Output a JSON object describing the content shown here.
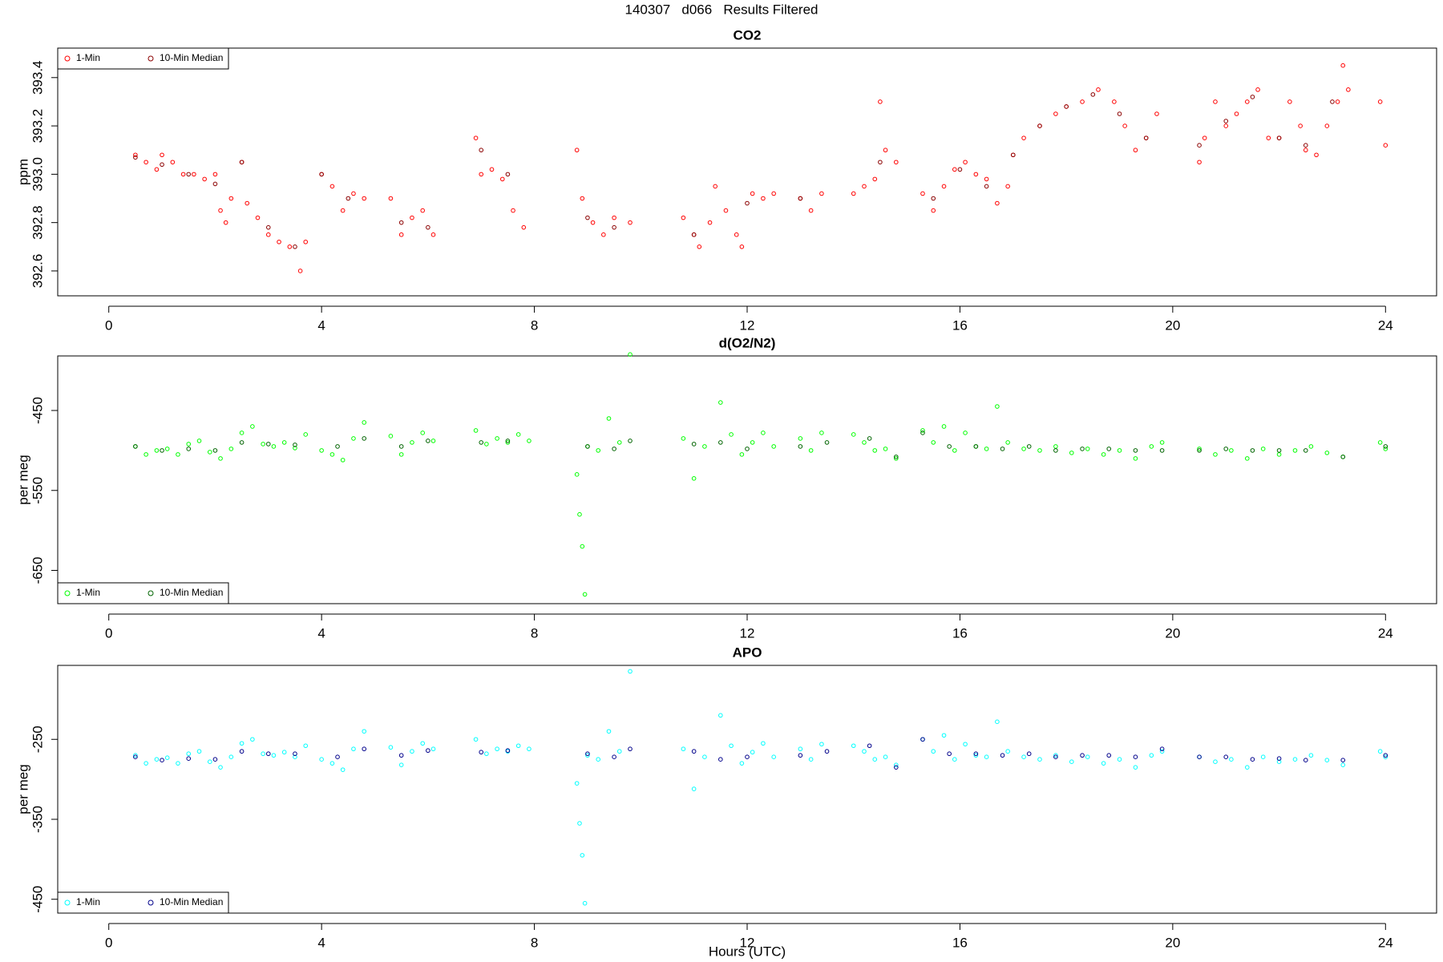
{
  "title": "140307   d066   Results Filtered",
  "chart_data": [
    {
      "type": "scatter",
      "title": "CO2",
      "ylabel": "ppm",
      "legend": "top-left",
      "xlim": [
        -0.96,
        24.96
      ],
      "xticks": [
        0,
        4,
        8,
        12,
        16,
        20,
        24
      ],
      "ylim": [
        392.497,
        393.522
      ],
      "yticks": [
        392.6,
        392.8,
        {
          "value": 393,
          "label": "393.0"
        },
        393.2,
        393.4
      ],
      "series": [
        {
          "name": "1-Min",
          "color": "#ff0000",
          "x": [
            0.5,
            0.7,
            0.9,
            1.0,
            1.2,
            1.4,
            1.6,
            1.8,
            2.0,
            2.1,
            2.2,
            2.3,
            2.5,
            2.6,
            2.8,
            3.0,
            3.2,
            3.4,
            3.6,
            3.7,
            4.0,
            4.2,
            4.4,
            4.6,
            4.8,
            5.3,
            5.5,
            5.7,
            5.9,
            6.1,
            6.9,
            7.0,
            7.2,
            7.4,
            7.6,
            7.8,
            8.8,
            8.9,
            9.1,
            9.3,
            9.5,
            9.8,
            10.8,
            11.0,
            11.1,
            11.3,
            11.4,
            11.6,
            11.8,
            11.9,
            12.1,
            12.3,
            12.5,
            13.0,
            13.2,
            13.4,
            14.0,
            14.2,
            14.4,
            14.5,
            14.6,
            14.8,
            15.3,
            15.5,
            15.7,
            15.9,
            16.1,
            16.3,
            16.5,
            16.7,
            16.9,
            17.0,
            17.2,
            17.5,
            17.8,
            18.0,
            18.3,
            18.6,
            18.9,
            19.1,
            19.3,
            19.5,
            19.7,
            20.5,
            20.6,
            20.8,
            21.0,
            21.2,
            21.4,
            21.6,
            21.8,
            22.0,
            22.2,
            22.4,
            22.5,
            22.7,
            22.9,
            23.1,
            23.2,
            23.3,
            23.9,
            24.0
          ],
          "values": [
            393.08,
            393.05,
            393.02,
            393.08,
            393.05,
            393.0,
            393.0,
            392.98,
            393.0,
            392.85,
            392.8,
            392.9,
            393.05,
            392.88,
            392.82,
            392.75,
            392.72,
            392.7,
            392.6,
            392.72,
            393.0,
            392.95,
            392.85,
            392.92,
            392.9,
            392.9,
            392.75,
            392.82,
            392.85,
            392.75,
            393.15,
            393.0,
            393.02,
            392.98,
            392.85,
            392.78,
            393.1,
            392.9,
            392.8,
            392.75,
            392.82,
            392.8,
            392.82,
            392.75,
            392.7,
            392.8,
            392.95,
            392.85,
            392.75,
            392.7,
            392.92,
            392.9,
            392.92,
            392.9,
            392.85,
            392.92,
            392.92,
            392.95,
            392.98,
            393.3,
            393.1,
            393.05,
            392.92,
            392.85,
            392.95,
            393.02,
            393.05,
            393.0,
            392.98,
            392.88,
            392.95,
            393.08,
            393.15,
            393.2,
            393.25,
            393.28,
            393.3,
            393.35,
            393.3,
            393.2,
            393.1,
            393.15,
            393.25,
            393.05,
            393.15,
            393.3,
            393.2,
            393.25,
            393.3,
            393.35,
            393.15,
            393.15,
            393.3,
            393.2,
            393.1,
            393.08,
            393.2,
            393.3,
            393.45,
            393.35,
            393.3,
            393.12
          ]
        },
        {
          "name": "10-Min Median",
          "color": "#8b0000",
          "x": [
            0.5,
            1.0,
            1.5,
            2.0,
            2.5,
            3.0,
            3.5,
            4.0,
            4.5,
            5.5,
            6.0,
            7.0,
            7.5,
            9.0,
            9.5,
            11.0,
            12.0,
            13.0,
            14.5,
            15.5,
            16.0,
            16.5,
            17.0,
            17.5,
            18.0,
            18.5,
            19.0,
            19.5,
            20.5,
            21.0,
            21.5,
            22.0,
            22.5,
            23.0
          ],
          "values": [
            393.07,
            393.04,
            393.0,
            392.96,
            393.05,
            392.78,
            392.7,
            393.0,
            392.9,
            392.8,
            392.78,
            393.1,
            393.0,
            392.82,
            392.78,
            392.75,
            392.88,
            392.9,
            393.05,
            392.9,
            393.02,
            392.95,
            393.08,
            393.2,
            393.28,
            393.33,
            393.25,
            393.15,
            393.12,
            393.22,
            393.32,
            393.15,
            393.12,
            393.3
          ]
        }
      ]
    },
    {
      "type": "scatter",
      "title": "d(O2/N2)",
      "ylabel": "per meg",
      "legend": "bottom-left",
      "xlim": [
        -0.96,
        24.96
      ],
      "xticks": [
        0,
        4,
        8,
        12,
        16,
        20,
        24
      ],
      "ylim": [
        -691.6,
        -381.8
      ],
      "yticks": [
        -450,
        -550,
        -650
      ],
      "series": [
        {
          "name": "1-Min",
          "color": "#00ff00",
          "x": [
            0.5,
            0.7,
            0.9,
            1.1,
            1.3,
            1.5,
            1.7,
            1.9,
            2.1,
            2.3,
            2.5,
            2.7,
            2.9,
            3.1,
            3.3,
            3.5,
            3.7,
            4.0,
            4.2,
            4.4,
            4.6,
            4.8,
            5.3,
            5.5,
            5.7,
            5.9,
            6.1,
            6.9,
            7.1,
            7.3,
            7.5,
            7.7,
            7.9,
            8.8,
            8.85,
            8.9,
            8.95,
            9.0,
            9.2,
            9.4,
            9.6,
            9.8,
            10.8,
            11.0,
            11.2,
            11.5,
            11.7,
            11.9,
            12.1,
            12.3,
            12.5,
            13.0,
            13.2,
            13.4,
            14.0,
            14.2,
            14.4,
            14.6,
            14.8,
            15.3,
            15.5,
            15.7,
            15.9,
            16.1,
            16.3,
            16.5,
            16.7,
            16.9,
            17.2,
            17.5,
            17.8,
            18.1,
            18.4,
            18.7,
            19.0,
            19.3,
            19.6,
            19.8,
            20.5,
            20.8,
            21.1,
            21.4,
            21.7,
            22.0,
            22.3,
            22.6,
            22.9,
            23.2,
            23.9,
            24.0
          ],
          "values": [
            -495,
            -505,
            -500,
            -498,
            -505,
            -492,
            -488,
            -502,
            -510,
            -498,
            -478,
            -470,
            -492,
            -495,
            -490,
            -497,
            -480,
            -500,
            -505,
            -512,
            -485,
            -465,
            -482,
            -505,
            -490,
            -478,
            -488,
            -475,
            -492,
            -485,
            -490,
            -480,
            -488,
            -530,
            -580,
            -620,
            -680,
            -495,
            -500,
            -460,
            -490,
            -380,
            -485,
            -535,
            -495,
            -440,
            -480,
            -505,
            -490,
            -478,
            -495,
            -485,
            -500,
            -478,
            -480,
            -490,
            -500,
            -498,
            -510,
            -475,
            -490,
            -470,
            -500,
            -478,
            -495,
            -498,
            -445,
            -490,
            -498,
            -500,
            -495,
            -503,
            -498,
            -505,
            -500,
            -510,
            -495,
            -490,
            -498,
            -505,
            -500,
            -510,
            -498,
            -505,
            -500,
            -495,
            -503,
            -508,
            -490,
            -498
          ]
        },
        {
          "name": "10-Min Median",
          "color": "#006400",
          "x": [
            0.5,
            1.0,
            1.5,
            2.0,
            2.5,
            3.0,
            3.5,
            4.3,
            4.8,
            5.5,
            6.0,
            7.0,
            7.5,
            9.0,
            9.5,
            9.8,
            11.0,
            11.5,
            12.0,
            13.0,
            13.5,
            14.3,
            14.8,
            15.3,
            15.8,
            16.3,
            16.8,
            17.3,
            17.8,
            18.3,
            18.8,
            19.3,
            19.8,
            20.5,
            21.0,
            21.5,
            22.0,
            22.5,
            23.2,
            24.0
          ],
          "values": [
            -495,
            -500,
            -498,
            -500,
            -490,
            -492,
            -493,
            -495,
            -485,
            -495,
            -488,
            -490,
            -488,
            -495,
            -498,
            -488,
            -492,
            -490,
            -498,
            -495,
            -490,
            -485,
            -508,
            -478,
            -495,
            -495,
            -498,
            -495,
            -500,
            -498,
            -498,
            -500,
            -500,
            -500,
            -498,
            -500,
            -500,
            -500,
            -508,
            -495
          ]
        }
      ]
    },
    {
      "type": "scatter",
      "title": "APO",
      "ylabel": "per meg",
      "xlabel": "Hours (UTC)",
      "legend": "bottom-left",
      "xlim": [
        -0.96,
        24.96
      ],
      "xticks": [
        0,
        4,
        8,
        12,
        16,
        20,
        24
      ],
      "ylim": [
        -467.3,
        -157.5
      ],
      "yticks": [
        -250,
        -350,
        -450
      ],
      "series": [
        {
          "name": "1-Min",
          "color": "#00ffff",
          "x": [
            0.5,
            0.7,
            0.9,
            1.1,
            1.3,
            1.5,
            1.7,
            1.9,
            2.1,
            2.3,
            2.5,
            2.7,
            2.9,
            3.1,
            3.3,
            3.5,
            3.7,
            4.0,
            4.2,
            4.4,
            4.6,
            4.8,
            5.3,
            5.5,
            5.7,
            5.9,
            6.1,
            6.9,
            7.1,
            7.3,
            7.5,
            7.7,
            7.9,
            8.8,
            8.85,
            8.9,
            8.95,
            9.0,
            9.2,
            9.4,
            9.6,
            9.8,
            10.8,
            11.0,
            11.2,
            11.5,
            11.7,
            11.9,
            12.1,
            12.3,
            12.5,
            13.0,
            13.2,
            13.4,
            14.0,
            14.2,
            14.4,
            14.6,
            14.8,
            15.3,
            15.5,
            15.7,
            15.9,
            16.1,
            16.3,
            16.5,
            16.7,
            16.9,
            17.2,
            17.5,
            17.8,
            18.1,
            18.4,
            18.7,
            19.0,
            19.3,
            19.6,
            19.8,
            20.5,
            20.8,
            21.1,
            21.4,
            21.7,
            22.0,
            22.3,
            22.6,
            22.9,
            23.2,
            23.9,
            24.0
          ],
          "values": [
            -270,
            -280,
            -275,
            -273,
            -280,
            -268,
            -265,
            -278,
            -285,
            -272,
            -255,
            -250,
            -268,
            -270,
            -266,
            -272,
            -258,
            -275,
            -280,
            -288,
            -262,
            -240,
            -260,
            -282,
            -265,
            -255,
            -262,
            -250,
            -268,
            -262,
            -265,
            -258,
            -262,
            -305,
            -355,
            -395,
            -455,
            -270,
            -275,
            -240,
            -265,
            -165,
            -262,
            -312,
            -272,
            -220,
            -258,
            -280,
            -266,
            -255,
            -272,
            -262,
            -275,
            -256,
            -258,
            -265,
            -275,
            -272,
            -282,
            -250,
            -265,
            -245,
            -275,
            -256,
            -270,
            -272,
            -228,
            -265,
            -272,
            -275,
            -270,
            -278,
            -272,
            -280,
            -275,
            -285,
            -270,
            -265,
            -272,
            -278,
            -275,
            -285,
            -272,
            -278,
            -275,
            -270,
            -276,
            -282,
            -265,
            -272
          ]
        },
        {
          "name": "10-Min Median",
          "color": "#00008b",
          "x": [
            0.5,
            1.0,
            1.5,
            2.0,
            2.5,
            3.0,
            3.5,
            4.3,
            4.8,
            5.5,
            6.0,
            7.0,
            7.5,
            9.0,
            9.5,
            9.8,
            11.0,
            11.5,
            12.0,
            13.0,
            13.5,
            14.3,
            14.8,
            15.3,
            15.8,
            16.3,
            16.8,
            17.3,
            17.8,
            18.3,
            18.8,
            19.3,
            19.8,
            20.5,
            21.0,
            21.5,
            22.0,
            22.5,
            23.2,
            24.0
          ],
          "values": [
            -272,
            -276,
            -274,
            -275,
            -265,
            -268,
            -268,
            -272,
            -262,
            -270,
            -264,
            -266,
            -264,
            -268,
            -272,
            -262,
            -265,
            -275,
            -272,
            -270,
            -265,
            -258,
            -285,
            -250,
            -268,
            -268,
            -270,
            -268,
            -272,
            -270,
            -270,
            -272,
            -262,
            -272,
            -272,
            -275,
            -274,
            -276,
            -276,
            -270
          ]
        }
      ]
    }
  ]
}
